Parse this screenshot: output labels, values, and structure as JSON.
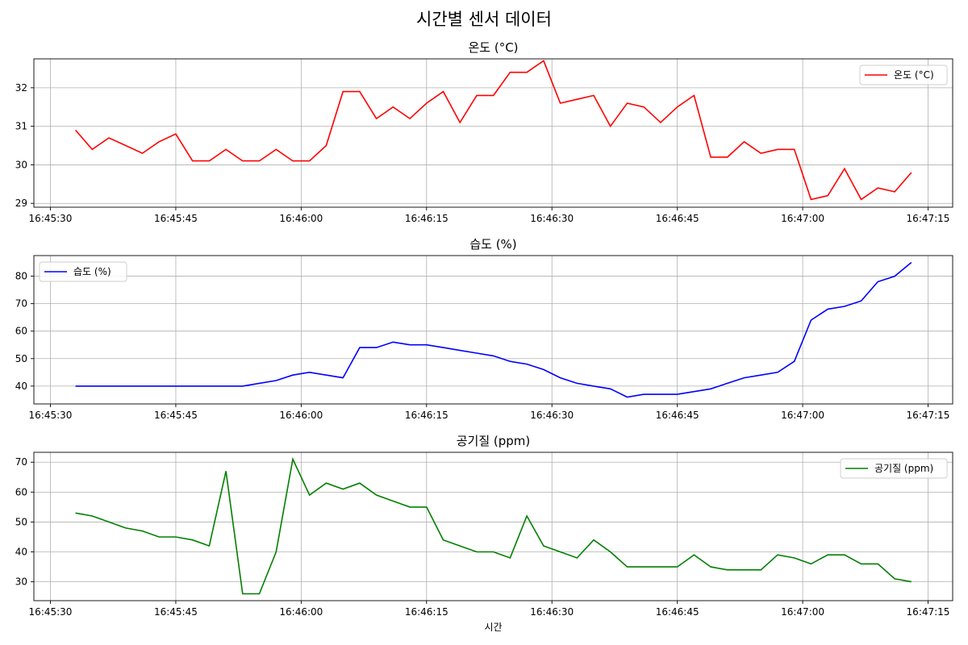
{
  "figure_title": "시간별 센서 데이터",
  "chart_data": [
    {
      "type": "line",
      "title": "온도 (°C)",
      "xlabel": "",
      "ylabel": "",
      "grid": true,
      "legend_position": "top-right",
      "x_ticks": [
        "16:45:30",
        "16:45:45",
        "16:46:00",
        "16:46:15",
        "16:46:30",
        "16:46:45",
        "16:47:00",
        "16:47:15"
      ],
      "ylim": [
        28.9,
        32.75
      ],
      "y_ticks": [
        29,
        30,
        31,
        32
      ],
      "series": [
        {
          "name": "온도 (°C)",
          "color": "#ff0000",
          "x": [
            "16:45:33",
            "16:45:35",
            "16:45:37",
            "16:45:39",
            "16:45:41",
            "16:45:43",
            "16:45:45",
            "16:45:47",
            "16:45:49",
            "16:45:51",
            "16:45:53",
            "16:45:55",
            "16:45:57",
            "16:45:59",
            "16:46:01",
            "16:46:03",
            "16:46:05",
            "16:46:07",
            "16:46:09",
            "16:46:11",
            "16:46:13",
            "16:46:15",
            "16:46:17",
            "16:46:19",
            "16:46:21",
            "16:46:23",
            "16:46:25",
            "16:46:27",
            "16:46:29",
            "16:46:31",
            "16:46:33",
            "16:46:35",
            "16:46:37",
            "16:46:39",
            "16:46:41",
            "16:46:43",
            "16:46:45",
            "16:46:47",
            "16:46:49",
            "16:46:51",
            "16:46:53",
            "16:46:55",
            "16:46:57",
            "16:46:59",
            "16:47:01",
            "16:47:03",
            "16:47:05",
            "16:47:07",
            "16:47:09",
            "16:47:11",
            "16:47:13"
          ],
          "values": [
            30.9,
            30.4,
            30.7,
            30.5,
            30.3,
            30.6,
            30.8,
            30.1,
            30.1,
            30.4,
            30.1,
            30.1,
            30.4,
            30.1,
            30.1,
            30.5,
            31.9,
            31.9,
            31.2,
            31.5,
            31.2,
            31.6,
            31.9,
            31.1,
            31.8,
            31.8,
            32.4,
            32.4,
            32.7,
            31.6,
            31.7,
            31.8,
            31.0,
            31.6,
            31.5,
            31.1,
            31.5,
            31.8,
            30.2,
            30.2,
            30.6,
            30.3,
            30.4,
            30.4,
            29.1,
            29.2,
            29.9,
            29.1,
            29.4,
            29.3,
            29.8
          ]
        }
      ]
    },
    {
      "type": "line",
      "title": "습도 (%)",
      "xlabel": "",
      "ylabel": "",
      "grid": true,
      "legend_position": "top-left",
      "x_ticks": [
        "16:45:30",
        "16:45:45",
        "16:46:00",
        "16:46:15",
        "16:46:30",
        "16:46:45",
        "16:47:00",
        "16:47:15"
      ],
      "ylim": [
        33.5,
        87.5
      ],
      "y_ticks": [
        40,
        50,
        60,
        70,
        80
      ],
      "series": [
        {
          "name": "습도 (%)",
          "color": "#0000ff",
          "x": [
            "16:45:33",
            "16:45:35",
            "16:45:37",
            "16:45:39",
            "16:45:41",
            "16:45:43",
            "16:45:45",
            "16:45:47",
            "16:45:49",
            "16:45:51",
            "16:45:53",
            "16:45:55",
            "16:45:57",
            "16:45:59",
            "16:46:01",
            "16:46:03",
            "16:46:05",
            "16:46:07",
            "16:46:09",
            "16:46:11",
            "16:46:13",
            "16:46:15",
            "16:46:17",
            "16:46:19",
            "16:46:21",
            "16:46:23",
            "16:46:25",
            "16:46:27",
            "16:46:29",
            "16:46:31",
            "16:46:33",
            "16:46:35",
            "16:46:37",
            "16:46:39",
            "16:46:41",
            "16:46:43",
            "16:46:45",
            "16:46:47",
            "16:46:49",
            "16:46:51",
            "16:46:53",
            "16:46:55",
            "16:46:57",
            "16:46:59",
            "16:47:01",
            "16:47:03",
            "16:47:05",
            "16:47:07",
            "16:47:09",
            "16:47:11",
            "16:47:13"
          ],
          "values": [
            40,
            40,
            40,
            40,
            40,
            40,
            40,
            40,
            40,
            40,
            40,
            41,
            42,
            44,
            45,
            44,
            43,
            54,
            54,
            56,
            55,
            55,
            54,
            53,
            52,
            51,
            49,
            48,
            46,
            43,
            41,
            40,
            39,
            36,
            37,
            37,
            37,
            38,
            39,
            41,
            43,
            44,
            45,
            49,
            64,
            68,
            69,
            71,
            78,
            80,
            85
          ]
        }
      ]
    },
    {
      "type": "line",
      "title": "공기질 (ppm)",
      "xlabel": "시간",
      "ylabel": "",
      "grid": true,
      "legend_position": "top-right",
      "x_ticks": [
        "16:45:30",
        "16:45:45",
        "16:46:00",
        "16:46:15",
        "16:46:30",
        "16:46:45",
        "16:47:00",
        "16:47:15"
      ],
      "ylim": [
        23.7,
        73.3
      ],
      "y_ticks": [
        30,
        40,
        50,
        60,
        70
      ],
      "series": [
        {
          "name": "공기질 (ppm)",
          "color": "#008000",
          "x": [
            "16:45:33",
            "16:45:35",
            "16:45:37",
            "16:45:39",
            "16:45:41",
            "16:45:43",
            "16:45:45",
            "16:45:47",
            "16:45:49",
            "16:45:51",
            "16:45:53",
            "16:45:55",
            "16:45:57",
            "16:45:59",
            "16:46:01",
            "16:46:03",
            "16:46:05",
            "16:46:07",
            "16:46:09",
            "16:46:11",
            "16:46:13",
            "16:46:15",
            "16:46:17",
            "16:46:19",
            "16:46:21",
            "16:46:23",
            "16:46:25",
            "16:46:27",
            "16:46:29",
            "16:46:31",
            "16:46:33",
            "16:46:35",
            "16:46:37",
            "16:46:39",
            "16:46:41",
            "16:46:43",
            "16:46:45",
            "16:46:47",
            "16:46:49",
            "16:46:51",
            "16:46:53",
            "16:46:55",
            "16:46:57",
            "16:46:59",
            "16:47:01",
            "16:47:03",
            "16:47:05",
            "16:47:07",
            "16:47:09",
            "16:47:11",
            "16:47:13"
          ],
          "values": [
            53,
            52,
            50,
            48,
            47,
            45,
            45,
            44,
            42,
            67,
            26,
            26,
            40,
            71,
            59,
            63,
            61,
            63,
            59,
            57,
            55,
            55,
            44,
            42,
            40,
            40,
            38,
            52,
            42,
            40,
            38,
            44,
            40,
            35,
            35,
            35,
            35,
            39,
            35,
            34,
            34,
            34,
            39,
            38,
            36,
            39,
            39,
            36,
            36,
            31,
            30
          ]
        }
      ]
    }
  ]
}
